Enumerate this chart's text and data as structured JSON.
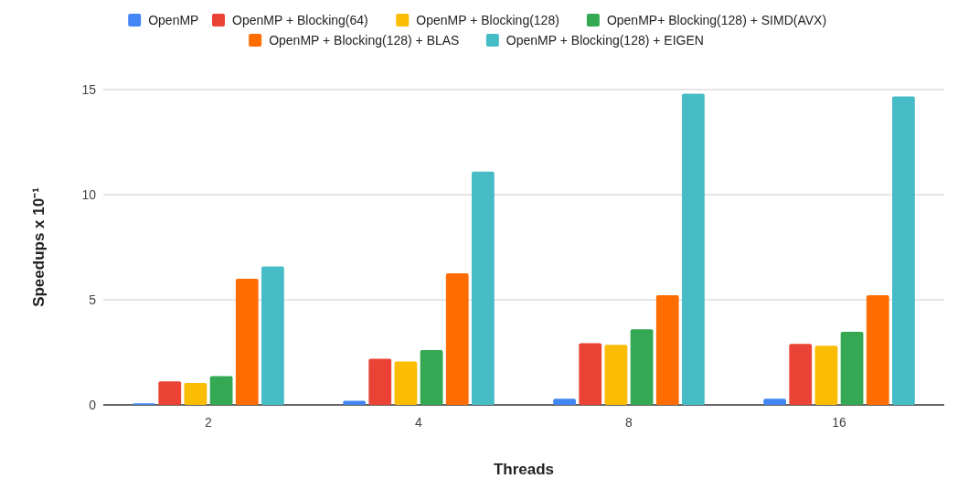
{
  "chart_data": {
    "type": "bar",
    "xlabel": "Threads",
    "ylabel": "Speedups x 10⁻¹",
    "categories": [
      "2",
      "4",
      "8",
      "16"
    ],
    "ylim": [
      0,
      15
    ],
    "yticks": [
      0,
      5,
      10,
      15
    ],
    "grid": "y",
    "legend": "top",
    "series": [
      {
        "name": "OpenMP",
        "color": "#4285f4",
        "values": [
          0.08,
          0.2,
          0.29,
          0.29
        ]
      },
      {
        "name": "OpenMP + Blocking(64)",
        "color": "#ea4335",
        "values": [
          1.12,
          2.2,
          2.94,
          2.9
        ]
      },
      {
        "name": "OpenMP + Blocking(128)",
        "color": "#fbbc04",
        "values": [
          1.04,
          2.07,
          2.86,
          2.82
        ]
      },
      {
        "name": "OpenMP+ Blocking(128) + SIMD(AVX)",
        "color": "#34a853",
        "values": [
          1.37,
          2.61,
          3.6,
          3.48
        ]
      },
      {
        "name": "OpenMP + Blocking(128) + BLAS",
        "color": "#ff6d01",
        "values": [
          6.0,
          6.26,
          5.22,
          5.22
        ]
      },
      {
        "name": "OpenMP + Blocking(128) + EIGEN",
        "color": "#46bdc6",
        "values": [
          6.59,
          11.1,
          14.8,
          14.67
        ]
      }
    ]
  }
}
